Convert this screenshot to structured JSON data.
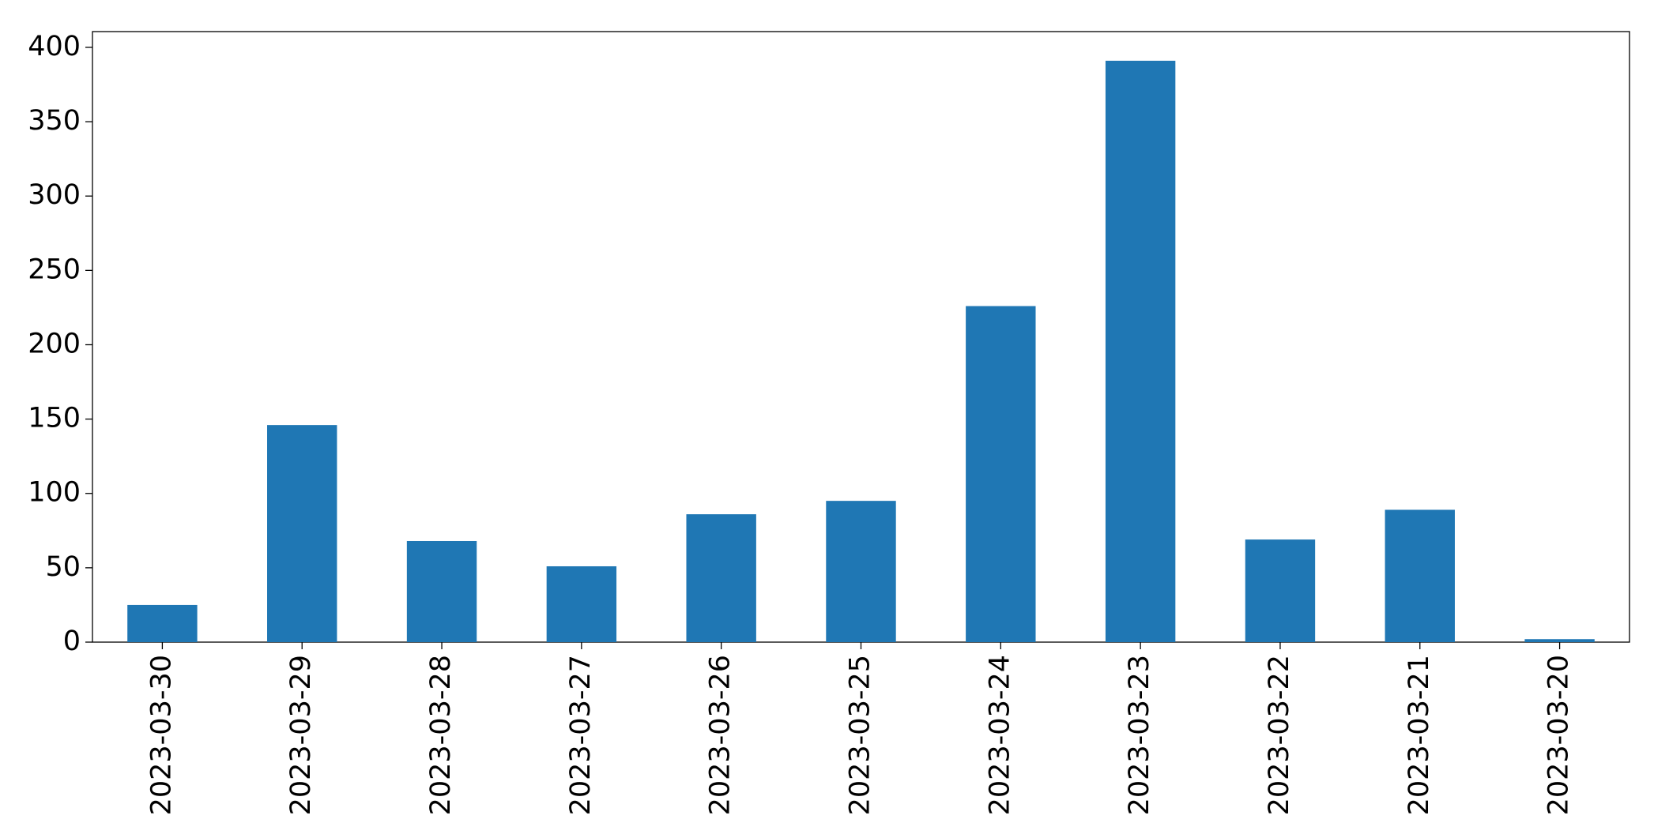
{
  "chart_data": {
    "type": "bar",
    "categories": [
      "2023-03-30",
      "2023-03-29",
      "2023-03-28",
      "2023-03-27",
      "2023-03-26",
      "2023-03-25",
      "2023-03-24",
      "2023-03-23",
      "2023-03-22",
      "2023-03-21",
      "2023-03-20"
    ],
    "values": [
      25,
      146,
      68,
      51,
      86,
      95,
      226,
      391,
      69,
      89,
      2
    ],
    "color": "#1f77b4",
    "ylim": [
      0,
      410.6
    ],
    "yticks": [
      0,
      50,
      100,
      150,
      200,
      250,
      300,
      350,
      400
    ],
    "grid": false
  }
}
